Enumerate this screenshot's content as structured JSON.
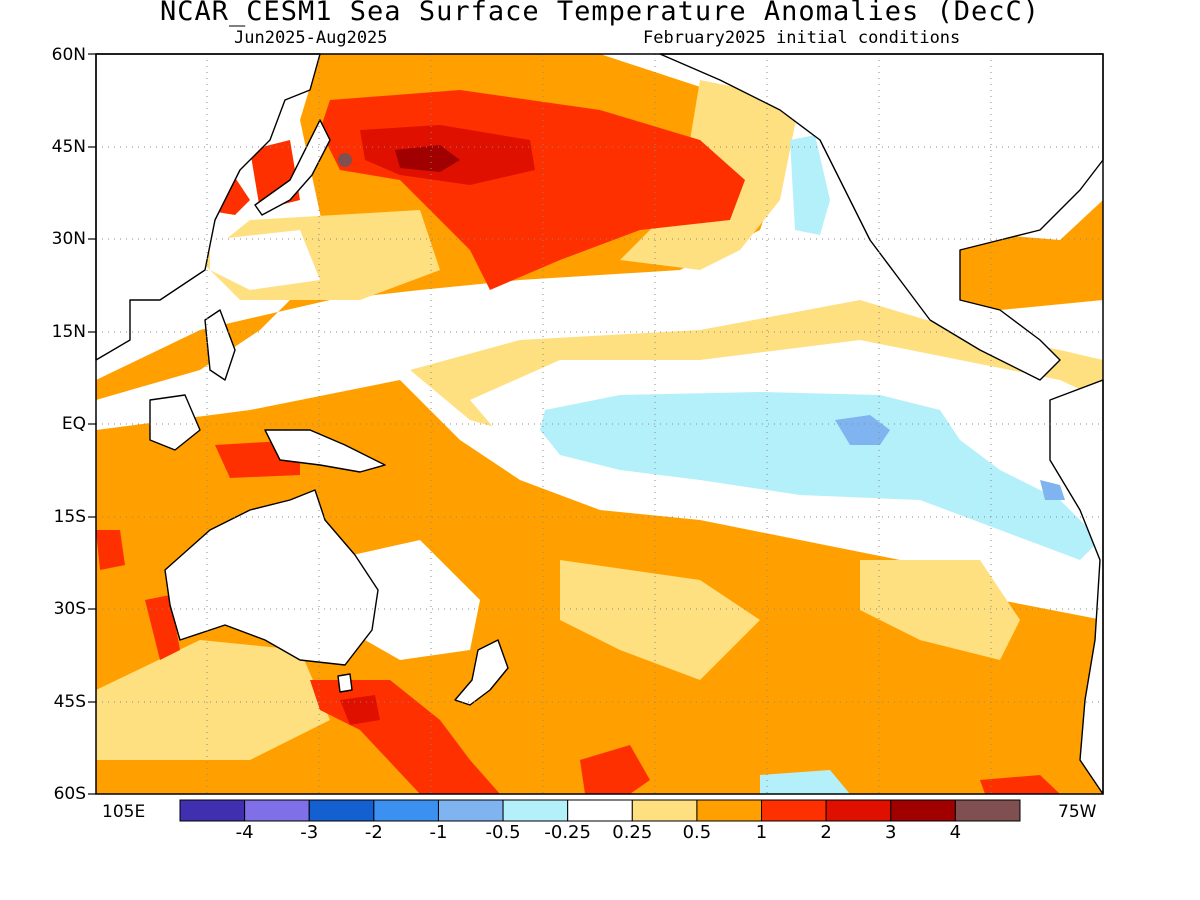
{
  "title": "NCAR_CESM1 Sea Surface Temperature Anomalies (DecC)",
  "subtitle_left": "Jun2025-Aug2025",
  "subtitle_right": "February2025 initial conditions",
  "lat_labels": [
    "60N",
    "45N",
    "30N",
    "15N",
    "EQ",
    "15S",
    "30S",
    "45S",
    "60S"
  ],
  "lon_labels": {
    "west": "105E",
    "east": "75W"
  },
  "legend": {
    "colors": [
      "#4030b0",
      "#8070e8",
      "#1460d0",
      "#3c90f0",
      "#80b4f0",
      "#b4f0fa",
      "#ffffff",
      "#ffe080",
      "#ffa000",
      "#ff3000",
      "#e01000",
      "#a00000",
      "#805050"
    ],
    "labels": [
      "-4",
      "-3",
      "-2",
      "-1",
      "-0.5",
      "-0.25",
      "0.25",
      "0.5",
      "1",
      "2",
      "3",
      "4"
    ]
  }
}
